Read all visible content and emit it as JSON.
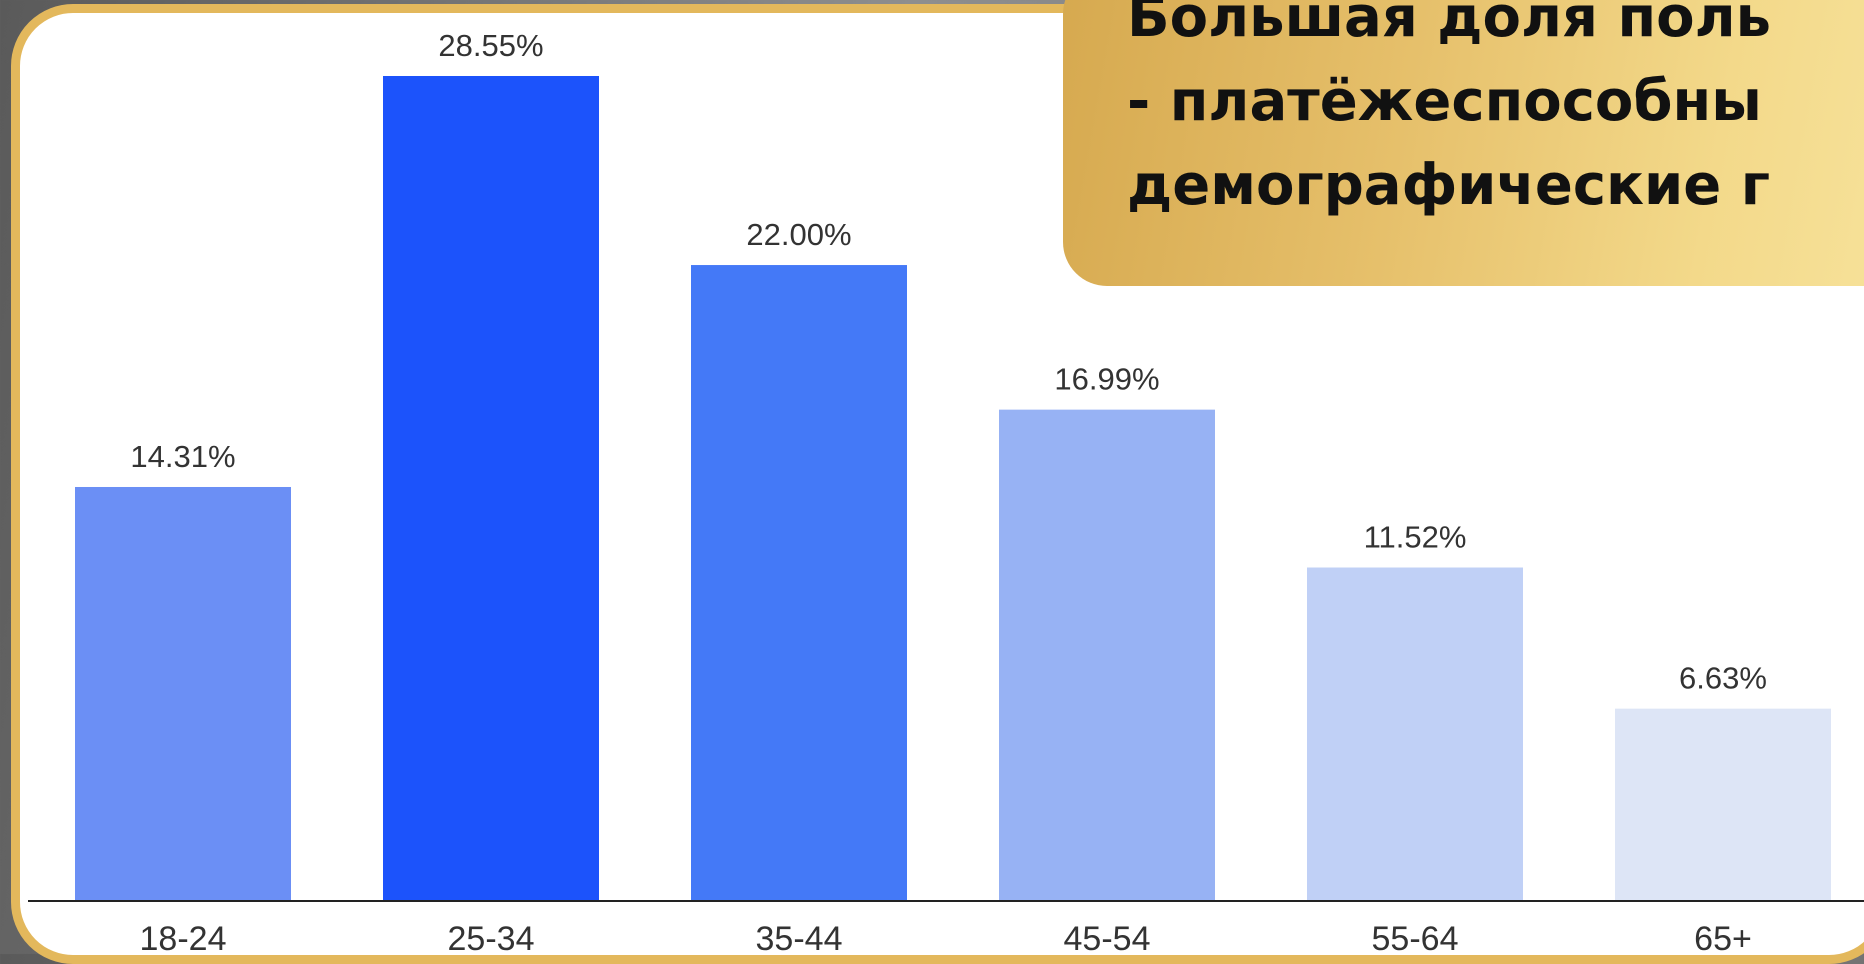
{
  "callout": {
    "lines": [
      "Большая доля поль",
      "- платёжеспособны",
      "демографические г"
    ]
  },
  "colors": {
    "frame": "#e3b85c",
    "callout_gold": "#e6c06b",
    "axis": "#222222",
    "label_text": "#333333"
  },
  "chart_data": {
    "type": "bar",
    "categories": [
      "18-24",
      "25-34",
      "35-44",
      "45-54",
      "55-64",
      "65+"
    ],
    "values": [
      14.31,
      28.55,
      22.0,
      16.99,
      11.52,
      6.63
    ],
    "value_labels": [
      "14.31%",
      "28.55%",
      "22.00%",
      "16.99%",
      "11.52%",
      "6.63%"
    ],
    "bar_colors": [
      "#6b8ff5",
      "#1c53fb",
      "#4479f7",
      "#97b2f4",
      "#c0d0f6",
      "#dde5f6"
    ],
    "title": "",
    "xlabel": "",
    "ylabel": "",
    "ylim": [
      0,
      28.55
    ],
    "grid": false,
    "legend": "none"
  }
}
